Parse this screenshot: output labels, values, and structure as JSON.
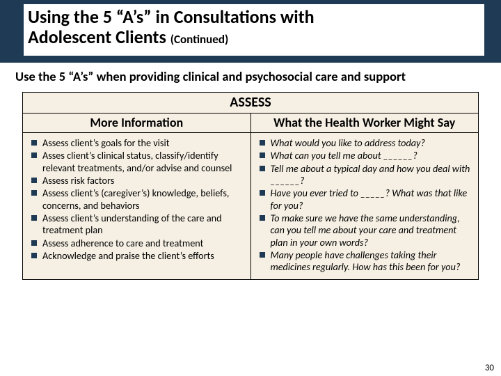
{
  "colors": {
    "band": "#1f3a54",
    "tableBg": "#f6f0e4",
    "bullet": "#1f3a54"
  },
  "title_line1": "Using the 5 “A’s” in Consultations with",
  "title_line2_main": "Adolescent Clients ",
  "title_line2_cont": "(Continued)",
  "subtitle": "Use the 5 “A’s” when providing clinical and psychosocial care and support",
  "table": {
    "section": "ASSESS",
    "col1_header": "More Information",
    "col2_header": "What the Health Worker Might Say",
    "col1_items": [
      "Assess client’s goals for the visit",
      "Asses client’s clinical status, classify/identify relevant treatments, and/or advise and counsel",
      "Assess risk factors",
      "Assess client’s (caregiver’s) knowledge, beliefs, concerns, and behaviors",
      "Assess client’s understanding of the care and treatment plan",
      "Assess adherence to care and treatment",
      "Acknowledge and praise the client’s efforts"
    ],
    "col2_items": [
      "What would you like to address today?",
      "What can you tell me about ______?",
      "Tell me about a typical day and how you deal with ______?",
      "Have you ever tried to _____? What was that like for you?",
      "To make sure we have the same understanding, can you tell me about your care and treatment plan in your own words?",
      "Many people have challenges taking their medicines regularly. How has this been for you?"
    ]
  },
  "page_number": "30"
}
